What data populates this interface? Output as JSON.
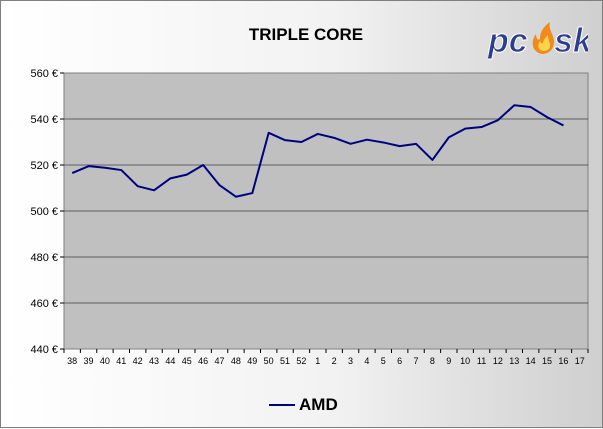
{
  "chart_data": {
    "type": "line",
    "title": "TRIPLE CORE",
    "categories": [
      "38",
      "39",
      "40",
      "41",
      "42",
      "43",
      "44",
      "45",
      "46",
      "47",
      "48",
      "49",
      "50",
      "51",
      "52",
      "1",
      "2",
      "3",
      "4",
      "5",
      "6",
      "7",
      "8",
      "9",
      "10",
      "11",
      "12",
      "13",
      "14",
      "15",
      "16",
      "17"
    ],
    "series": [
      {
        "name": "AMD",
        "color": "#000080",
        "values": [
          516.5,
          519.5,
          518.8,
          517.8,
          510.8,
          509.0,
          514.2,
          515.8,
          520.0,
          511.2,
          506.2,
          507.8,
          534.0,
          530.8,
          530.0,
          533.5,
          531.8,
          529.2,
          531.0,
          529.8,
          528.2,
          529.2,
          522.2,
          532.0,
          535.8,
          536.5,
          539.5,
          546.0,
          545.2,
          540.8,
          537.2,
          null
        ]
      }
    ],
    "y_ticks": [
      "560 €",
      "540 €",
      "520 €",
      "500 €",
      "480 €",
      "460 €",
      "440 €"
    ],
    "ylim": [
      440,
      560
    ],
    "y_step": 20,
    "grid": true,
    "plot_background": "#c0c0c0",
    "legend": "bottom"
  },
  "logo": {
    "text_left": "pc",
    "text_right": "sk"
  }
}
